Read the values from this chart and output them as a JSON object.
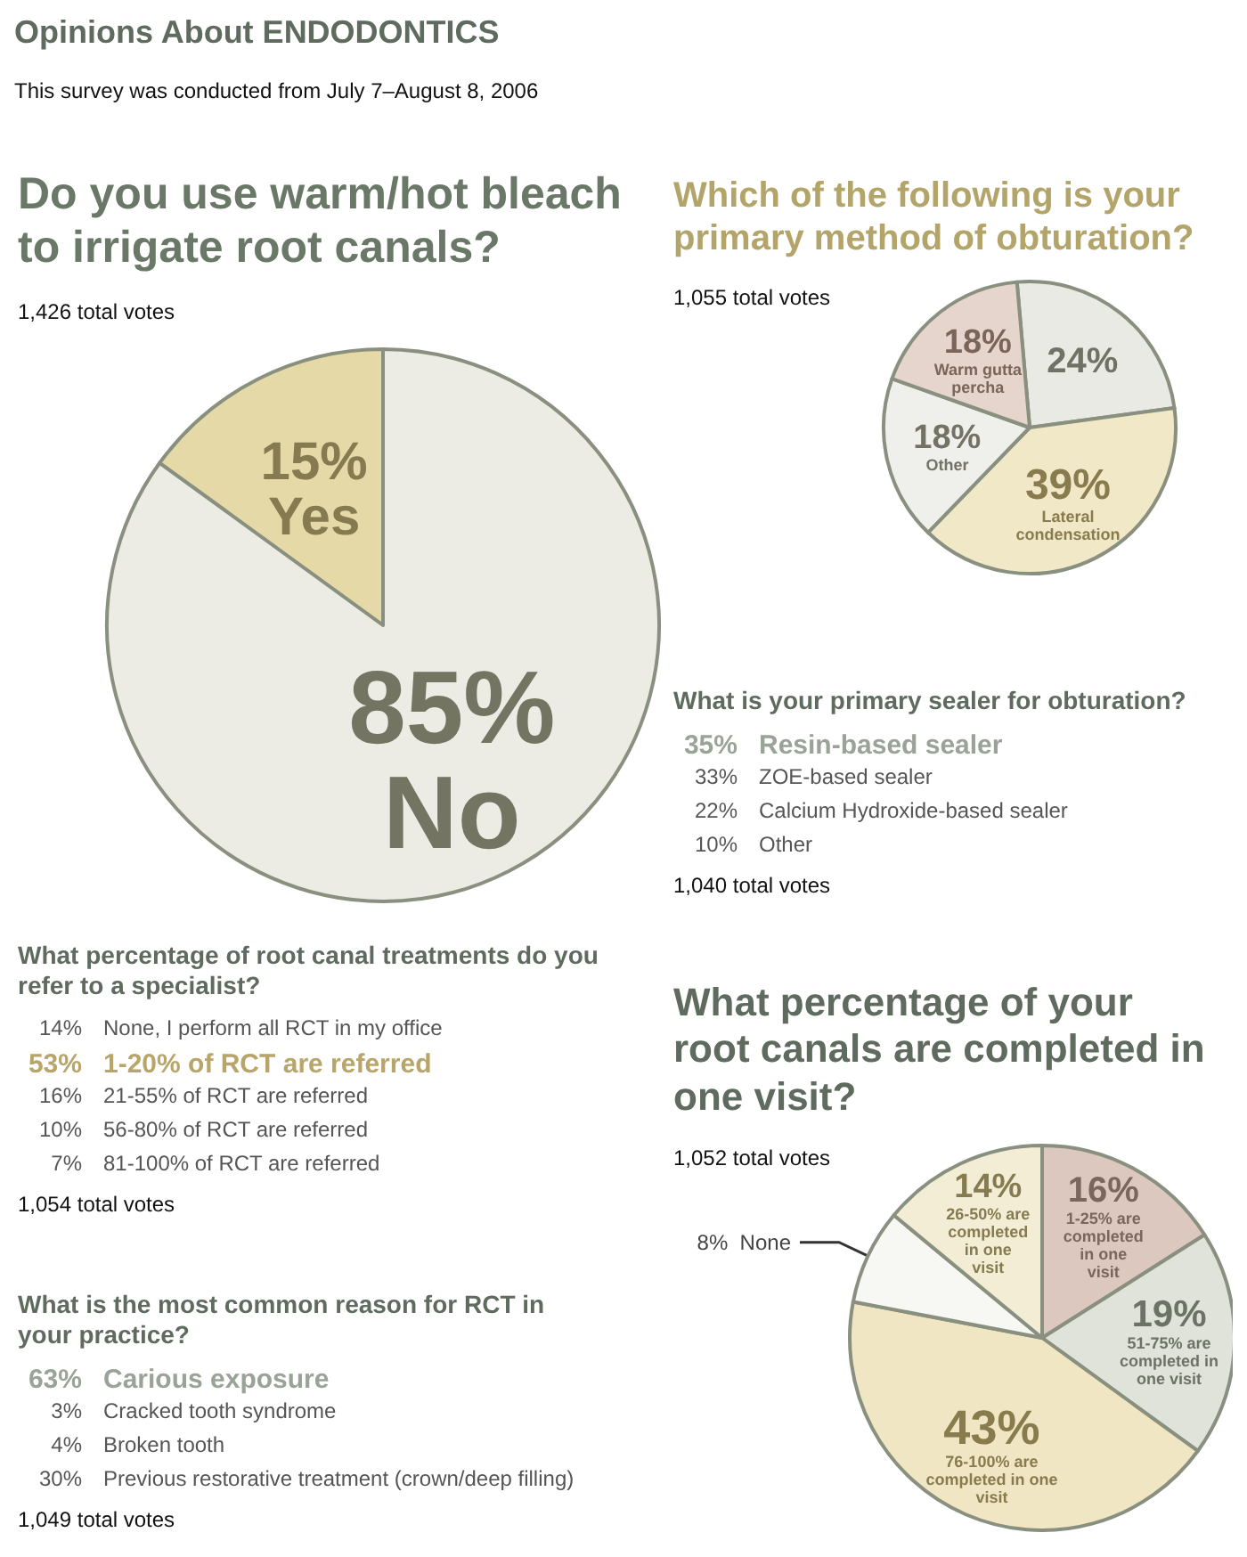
{
  "chart_data": [
    {
      "type": "other",
      "title": "Opinions About ENDODONTICS",
      "annotations": [
        "This survey was conducted from July 7–August 8, 2006"
      ]
    },
    {
      "type": "pie",
      "title": "Do you use warm/hot bleach to irrigate root canals?",
      "annotations": [
        "1,426 total votes"
      ],
      "categories": [
        "Yes",
        "No"
      ],
      "values": [
        15,
        85
      ],
      "value_labels": [
        "15%",
        "85%"
      ],
      "colors": [
        "#e6d9a8",
        "#ecece4"
      ]
    },
    {
      "type": "pie",
      "title": "Which of the following is your primary method of obturation?",
      "annotations": [
        "1,055 total votes"
      ],
      "categories": [
        null,
        "Lateral condensation",
        "Other",
        "Warm gutta percha"
      ],
      "values": [
        24,
        39,
        18,
        18
      ],
      "value_labels": [
        "24%",
        "39%",
        "18%",
        "18%"
      ],
      "colors": [
        "#e9eae4",
        "#f1e8c8",
        "#efefec",
        "#e6d5cd"
      ]
    },
    {
      "type": "other",
      "title": "What is your primary sealer for obturation?",
      "annotations": [
        "1,040 total votes"
      ],
      "categories": [
        "Resin-based sealer",
        "ZOE-based sealer",
        "Calcium Hydroxide-based sealer",
        "Other"
      ],
      "values": [
        35,
        33,
        22,
        10
      ],
      "value_labels": [
        "35%",
        "33%",
        "22%",
        "10%"
      ],
      "colors": [
        "#9aa398",
        "#555555",
        "#555555",
        "#555555"
      ]
    },
    {
      "type": "other",
      "title": "What percentage of root canal treatments do you refer to a specialist?",
      "annotations": [
        "1,054 total votes"
      ],
      "categories": [
        "None, I perform all RCT in my office",
        "1-20% of RCT are referred",
        "21-55% of RCT are referred",
        "56-80% of RCT are referred",
        "81-100% of RCT are referred"
      ],
      "values": [
        14,
        53,
        16,
        10,
        7
      ],
      "value_labels": [
        "14%",
        "53%",
        "16%",
        "10%",
        "7%"
      ],
      "colors": [
        "#555555",
        "#b8a56a",
        "#555555",
        "#555555",
        "#555555"
      ]
    },
    {
      "type": "pie",
      "title": "What percentage of your root canals are completed in one visit?",
      "annotations": [
        "1,052 total votes"
      ],
      "categories": [
        "1-25% are completed in one visit",
        "51-75% are completed in one visit",
        "76-100% are completed in one visit",
        "None",
        "26-50% are completed in one visit"
      ],
      "values": [
        16,
        19,
        43,
        8,
        14
      ],
      "value_labels": [
        "16%",
        "19%",
        "43%",
        "8%",
        "14%"
      ],
      "colors": [
        "#dcc8be",
        "#dfe3da",
        "#f0e6c4",
        "#f7f7f4",
        "#f3edd6"
      ]
    },
    {
      "type": "other",
      "title": "What is the most common reason for RCT in your practice?",
      "annotations": [
        "1,049 total votes"
      ],
      "categories": [
        "Carious exposure",
        "Cracked tooth syndrome",
        "Broken tooth",
        "Previous restorative treatment (crown/deep filling)"
      ],
      "values": [
        63,
        3,
        4,
        30
      ],
      "value_labels": [
        "63%",
        "3%",
        "4%",
        "30%"
      ],
      "colors": [
        "#9aa398",
        "#555555",
        "#555555",
        "#555555"
      ]
    }
  ]
}
